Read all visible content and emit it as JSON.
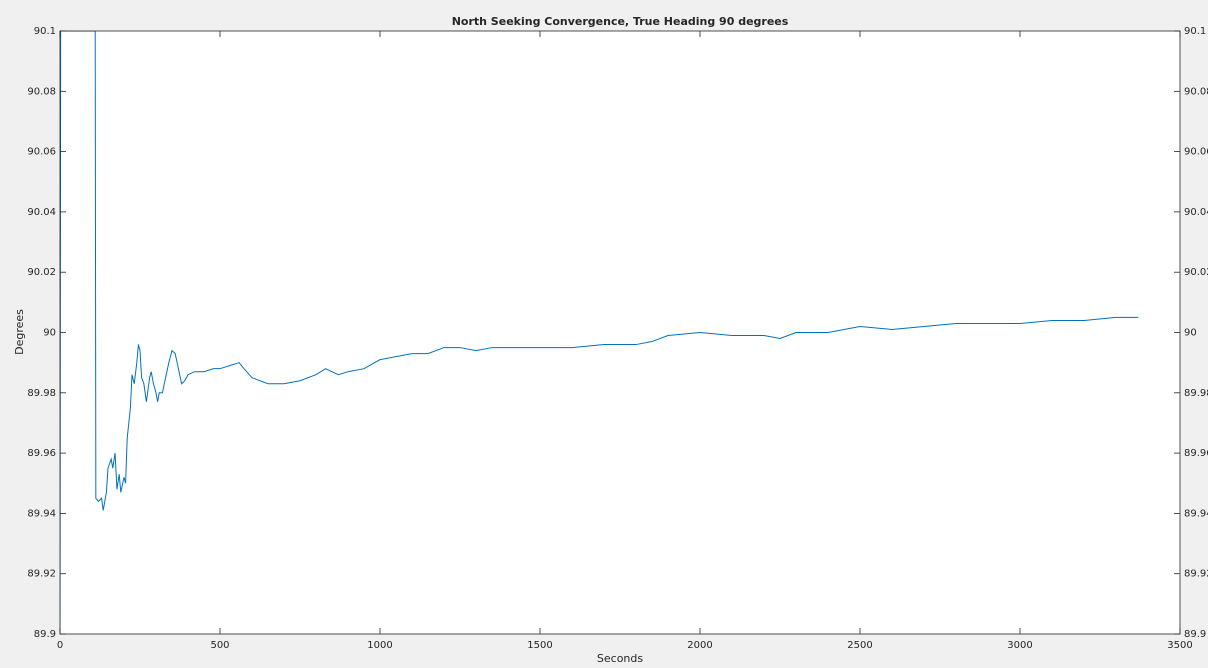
{
  "chart_data": {
    "type": "line",
    "title": "North Seeking Convergence, True Heading 90 degrees",
    "x_label": "Seconds",
    "y_label": "Degrees",
    "xlim": [
      0,
      3500
    ],
    "ylim": [
      89.9,
      90.1
    ],
    "xticks": [
      0,
      500,
      1000,
      1500,
      2000,
      2500,
      3000,
      3500
    ],
    "yticks": [
      89.9,
      89.92,
      89.94,
      89.96,
      89.98,
      90,
      90.02,
      90.04,
      90.06,
      90.08,
      90.1
    ],
    "grid": false,
    "series": [
      {
        "color": "#0072bd",
        "x": [
          0,
          2,
          4,
          110,
          112,
          120,
          130,
          135,
          145,
          150,
          160,
          165,
          172,
          178,
          185,
          190,
          200,
          205,
          210,
          220,
          225,
          232,
          240,
          245,
          250,
          255,
          262,
          270,
          280,
          285,
          292,
          300,
          305,
          310,
          320,
          330,
          340,
          350,
          360,
          370,
          380,
          390,
          400,
          420,
          450,
          480,
          500,
          530,
          560,
          575,
          600,
          650,
          700,
          750,
          800,
          830,
          870,
          900,
          950,
          1000,
          1050,
          1100,
          1150,
          1200,
          1250,
          1300,
          1350,
          1400,
          1500,
          1600,
          1700,
          1800,
          1850,
          1900,
          2000,
          2100,
          2200,
          2250,
          2300,
          2400,
          2500,
          2600,
          2700,
          2800,
          2900,
          3000,
          3100,
          3200,
          3300,
          3370
        ],
        "values": [
          89.9,
          90.1,
          90.1,
          90.1,
          89.945,
          89.944,
          89.945,
          89.941,
          89.947,
          89.955,
          89.958,
          89.955,
          89.96,
          89.948,
          89.953,
          89.947,
          89.952,
          89.95,
          89.965,
          89.975,
          89.986,
          89.983,
          89.99,
          89.996,
          89.994,
          89.985,
          89.983,
          89.977,
          89.985,
          89.987,
          89.983,
          89.98,
          89.977,
          89.98,
          89.98,
          89.985,
          89.99,
          89.994,
          89.993,
          89.988,
          89.983,
          89.984,
          89.986,
          89.987,
          89.987,
          89.988,
          89.988,
          89.989,
          89.99,
          89.988,
          89.985,
          89.983,
          89.983,
          89.984,
          89.986,
          89.988,
          89.986,
          89.987,
          89.988,
          89.991,
          89.992,
          89.993,
          89.993,
          89.995,
          89.995,
          89.994,
          89.995,
          89.995,
          89.995,
          89.995,
          89.996,
          89.996,
          89.997,
          89.999,
          90.0,
          89.999,
          89.999,
          89.998,
          90.0,
          90.0,
          90.002,
          90.001,
          90.002,
          90.003,
          90.003,
          90.003,
          90.004,
          90.004,
          90.005,
          90.005
        ]
      }
    ]
  }
}
